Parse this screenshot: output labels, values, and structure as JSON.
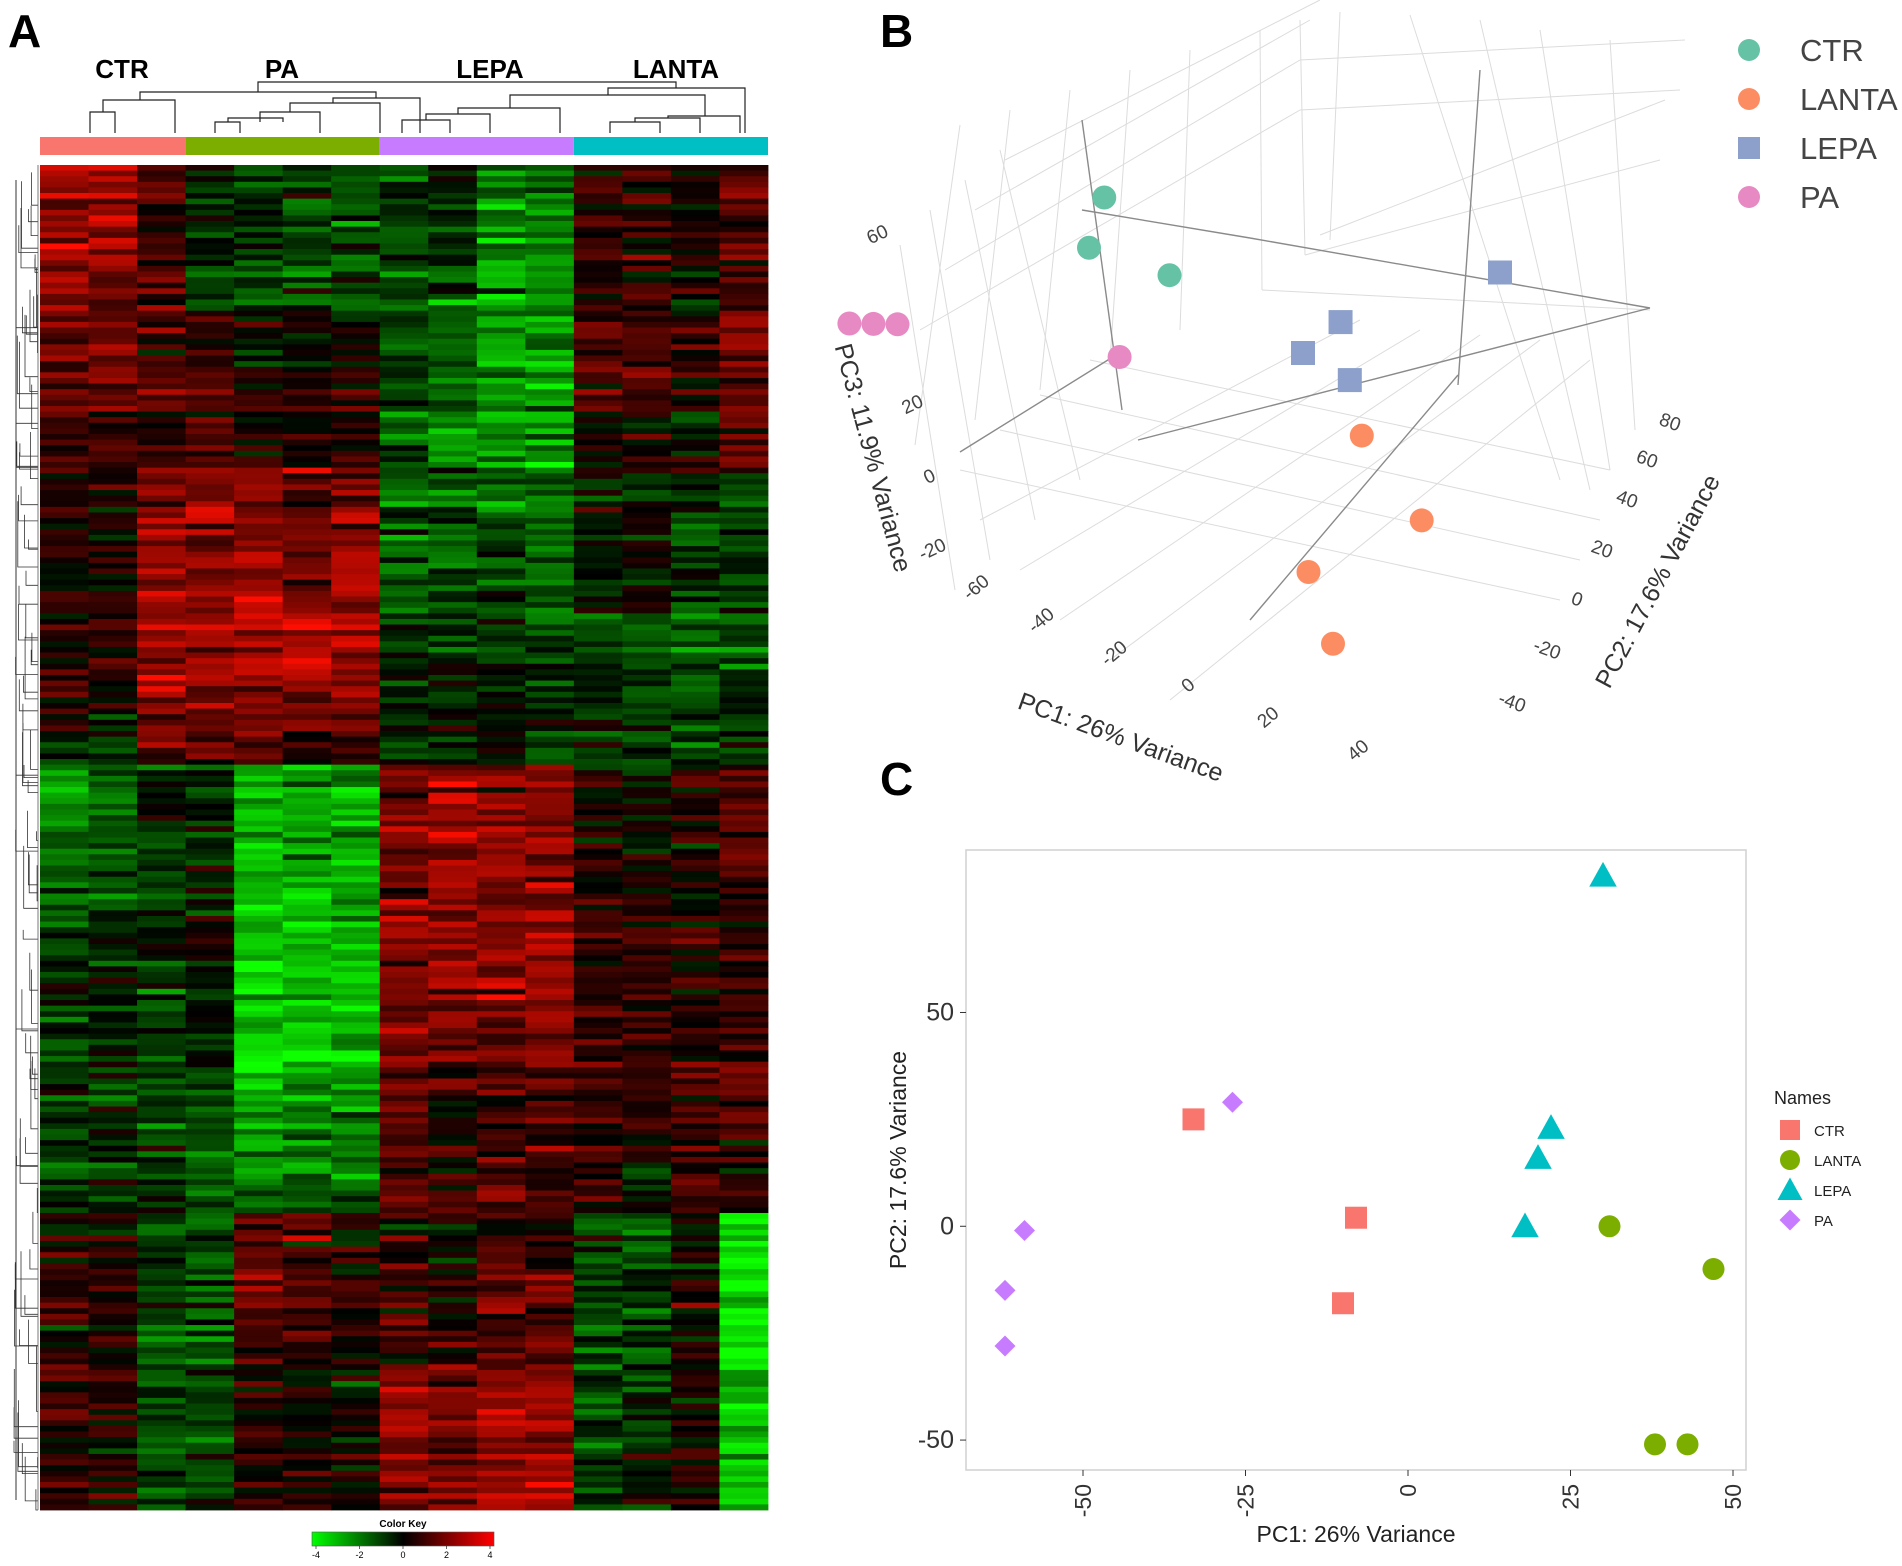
{
  "panels": {
    "a": "A",
    "b": "B",
    "c": "C"
  },
  "colors": {
    "ctr": "#f8766d",
    "pa": "#7cae00",
    "lepa": "#c77cff",
    "lanta": "#00bfc4",
    "pca3d_ctr": "#66c2a5",
    "pca3d_lanta": "#fc8d62",
    "pca3d_lepa": "#8da0cb",
    "pca3d_pa": "#e78ac3"
  },
  "chart_data": [
    {
      "id": "heatmap",
      "type": "heatmap",
      "title": "",
      "group_labels": [
        "CTR",
        "PA",
        "LEPA",
        "LANTA"
      ],
      "group_sample_counts": [
        3,
        4,
        4,
        4
      ],
      "color_key": {
        "title": "Color Key",
        "ticks": [
          "-4",
          "-2",
          "0",
          "2",
          "4"
        ],
        "range": [
          -4,
          4
        ],
        "low_color": "#00ff00",
        "mid_color": "#000000",
        "high_color": "#ff0000"
      },
      "column_means_by_band": {
        "note": "approximate z-scores per sample (columns) across row blocks (top to bottom)",
        "blocks": [
          [
            2.0,
            2.0,
            1.0,
            -0.5,
            -1.0,
            -1.0,
            -1.0,
            -0.8,
            -0.5,
            -1.5,
            -1.5,
            0.5,
            0.5,
            0.2,
            1.0
          ],
          [
            1.0,
            1.0,
            0.5,
            0.5,
            0.0,
            0.0,
            0.0,
            -0.8,
            -1.5,
            -2.0,
            -2.0,
            0.8,
            0.8,
            0.3,
            1.5
          ],
          [
            0.3,
            0.3,
            1.5,
            1.5,
            1.5,
            1.2,
            1.5,
            -1.2,
            -1.2,
            -1.0,
            -1.2,
            0.0,
            0.0,
            -0.5,
            -0.5
          ],
          [
            0.5,
            0.5,
            2.0,
            2.0,
            2.5,
            2.5,
            2.5,
            -0.8,
            -0.8,
            -0.5,
            -0.8,
            -0.8,
            -1.0,
            -1.2,
            -1.0
          ],
          [
            -1.5,
            -1.2,
            -0.5,
            -0.5,
            -2.0,
            -2.0,
            -1.8,
            1.5,
            2.0,
            1.5,
            1.5,
            0.3,
            0.0,
            0.3,
            1.0
          ],
          [
            -0.5,
            -0.5,
            -0.5,
            -0.2,
            -2.5,
            -2.5,
            -2.5,
            1.5,
            1.8,
            1.8,
            1.8,
            0.5,
            0.5,
            0.3,
            0.5
          ],
          [
            -0.8,
            -0.8,
            -0.8,
            -1.0,
            -2.5,
            -2.2,
            -2.2,
            1.2,
            0.5,
            0.8,
            1.0,
            1.0,
            0.5,
            0.8,
            1.5
          ],
          [
            0.5,
            0.3,
            -0.8,
            -1.0,
            1.2,
            1.0,
            0.5,
            0.5,
            0.0,
            0.8,
            0.8,
            -0.8,
            -0.8,
            0.0,
            -3.0
          ],
          [
            0.5,
            0.3,
            -0.8,
            -0.8,
            0.5,
            0.3,
            0.2,
            1.5,
            1.5,
            2.0,
            2.0,
            -0.8,
            -0.5,
            0.3,
            -2.5
          ]
        ]
      }
    },
    {
      "id": "pca3d",
      "type": "scatter",
      "title": "",
      "xlabel": "PC1: 26% Variance",
      "ylabel": "PC2: 17.6% Variance",
      "zlabel": "PC3: 11.9% Variance",
      "x_ticks": [
        "-60",
        "-40",
        "-20",
        "0",
        "20",
        "40"
      ],
      "y_ticks": [
        "-40",
        "-20",
        "0",
        "20",
        "40",
        "60",
        "80"
      ],
      "z_ticks": [
        "-20",
        "0",
        "20",
        "40",
        "60"
      ],
      "legend": [
        "CTR",
        "LANTA",
        "LEPA",
        "PA"
      ],
      "series": [
        {
          "name": "CTR",
          "points": [
            [
              -35,
              30,
              35
            ],
            [
              -30,
              25,
              55
            ],
            [
              -8,
              2,
              50
            ]
          ]
        },
        {
          "name": "LANTA",
          "points": [
            [
              48,
              -10,
              5
            ],
            [
              40,
              -50,
              0
            ],
            [
              32,
              0,
              20
            ],
            [
              45,
              -50,
              -20
            ]
          ]
        },
        {
          "name": "LEPA",
          "points": [
            [
              20,
              0,
              40
            ],
            [
              22,
              15,
              45
            ],
            [
              22,
              20,
              25
            ],
            [
              30,
              80,
              40
            ]
          ]
        },
        {
          "name": "PA",
          "points": [
            [
              -62,
              -2,
              10
            ],
            [
              -62,
              -15,
              15
            ],
            [
              -62,
              -28,
              20
            ],
            [
              -28,
              28,
              5
            ]
          ]
        }
      ]
    },
    {
      "id": "pca2d",
      "type": "scatter",
      "title": "",
      "xlabel": "PC1: 26% Variance",
      "ylabel": "PC2: 17.6% Variance",
      "xlim": [
        -68,
        52
      ],
      "ylim": [
        -57,
        88
      ],
      "x_ticks": [
        -50,
        -25,
        0,
        25,
        50
      ],
      "x_tick_labels": [
        "-50",
        "-25",
        "0",
        "25",
        "50"
      ],
      "y_ticks": [
        -50,
        0,
        50
      ],
      "y_tick_labels": [
        "-50",
        "0",
        "50"
      ],
      "legend_title": "Names",
      "legend": [
        "CTR",
        "LANTA",
        "LEPA",
        "PA"
      ],
      "series": [
        {
          "name": "CTR",
          "shape": "square",
          "x": [
            -33,
            -8,
            -10
          ],
          "y": [
            25,
            2,
            -18
          ]
        },
        {
          "name": "LANTA",
          "shape": "circle",
          "x": [
            31,
            47,
            38,
            43
          ],
          "y": [
            0,
            -10,
            -51,
            -51
          ]
        },
        {
          "name": "LEPA",
          "shape": "triangle",
          "x": [
            30,
            22,
            20,
            18
          ],
          "y": [
            82,
            23,
            16,
            0
          ]
        },
        {
          "name": "PA",
          "shape": "diamond",
          "x": [
            -27,
            -59,
            -62,
            -62
          ],
          "y": [
            29,
            -1,
            -15,
            -28
          ]
        }
      ]
    }
  ]
}
